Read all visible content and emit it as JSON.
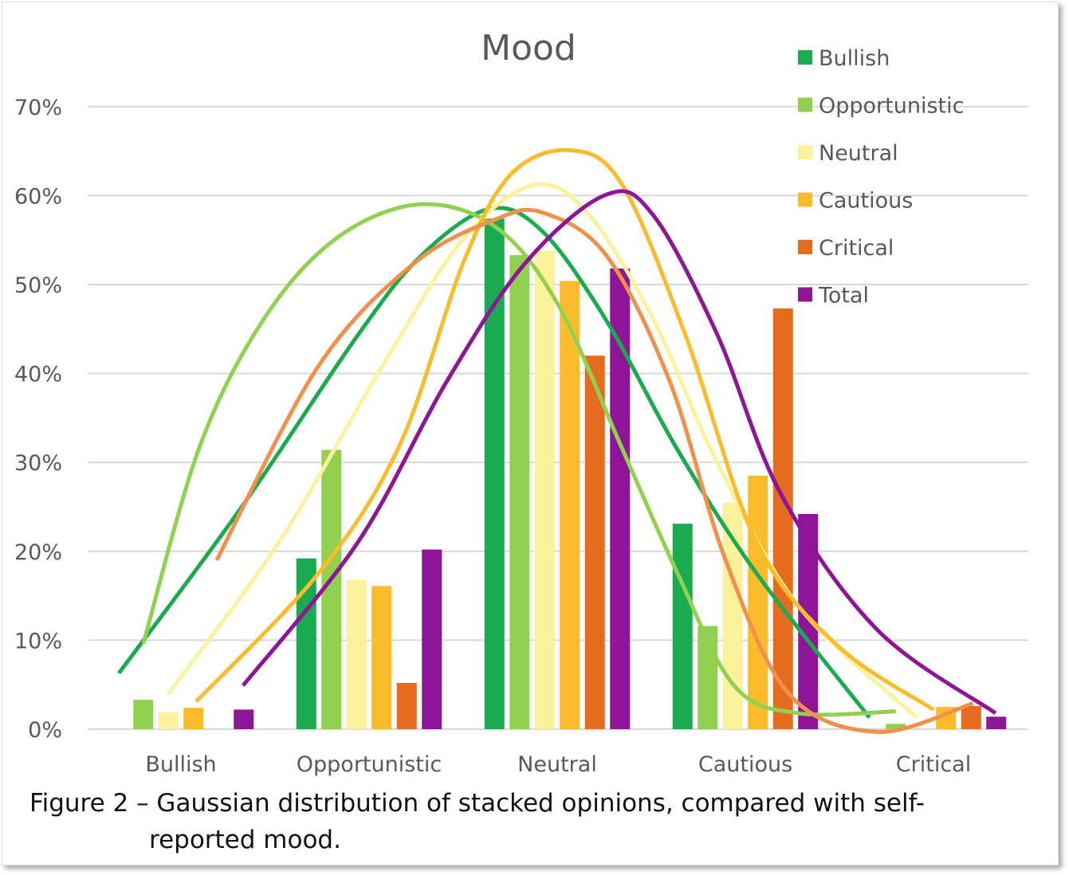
{
  "chart_data": {
    "type": "bar",
    "title": "Mood",
    "categories": [
      "Bullish",
      "Opportunistic",
      "Neutral",
      "Cautious",
      "Critical"
    ],
    "ylim": [
      0,
      70
    ],
    "yticks": [
      "0%",
      "10%",
      "20%",
      "30%",
      "40%",
      "50%",
      "60%",
      "70%"
    ],
    "grid": true,
    "legend_placement": "top-right",
    "series": [
      {
        "name": "Bullish",
        "color": "#1aab50",
        "values": [
          0,
          19.2,
          57.4,
          23.1,
          0
        ],
        "trend": [
          [
            -0.33,
            6.3
          ],
          [
            0.31,
            24.6
          ],
          [
            0.94,
            44.3
          ],
          [
            1.28,
            53.3
          ],
          [
            1.64,
            58.5
          ],
          [
            1.92,
            56
          ],
          [
            2.26,
            46
          ],
          [
            2.64,
            31.4
          ],
          [
            3.06,
            17.5
          ],
          [
            3.66,
            1.3
          ]
        ]
      },
      {
        "name": "Opportunistic",
        "color": "#92d050",
        "values": [
          3.3,
          31.4,
          53.3,
          11.6,
          0.6
        ],
        "trend": [
          [
            -0.2,
            9.6
          ],
          [
            0.1,
            31.8
          ],
          [
            0.44,
            46.1
          ],
          [
            0.82,
            55.1
          ],
          [
            1.26,
            59
          ],
          [
            1.67,
            56.5
          ],
          [
            2.0,
            47.9
          ],
          [
            2.34,
            31.8
          ],
          [
            2.64,
            17.5
          ],
          [
            2.94,
            4.9
          ],
          [
            3.28,
            1.8
          ],
          [
            3.8,
            2.0
          ]
        ]
      },
      {
        "name": "Neutral",
        "color": "#fdf29c",
        "values": [
          1.9,
          16.8,
          53.8,
          25.5,
          0
        ],
        "trend": [
          [
            -0.07,
            3.9
          ],
          [
            0.52,
            21
          ],
          [
            1.07,
            40.8
          ],
          [
            1.5,
            55.1
          ],
          [
            1.88,
            61.2
          ],
          [
            2.17,
            57.8
          ],
          [
            2.51,
            46.1
          ],
          [
            2.85,
            30
          ],
          [
            3.28,
            13.9
          ],
          [
            3.91,
            1.3
          ]
        ]
      },
      {
        "name": "Cautious",
        "color": "#fbbc2c",
        "values": [
          2.4,
          16.1,
          50.4,
          28.5,
          2.5
        ],
        "trend": [
          [
            0.08,
            3.1
          ],
          [
            0.73,
            17.5
          ],
          [
            1.16,
            31.8
          ],
          [
            1.5,
            52.4
          ],
          [
            1.75,
            62.3
          ],
          [
            2.06,
            65.1
          ],
          [
            2.34,
            61.4
          ],
          [
            2.68,
            44.4
          ],
          [
            3.06,
            21
          ],
          [
            3.49,
            9.4
          ],
          [
            4.0,
            2.2
          ]
        ]
      },
      {
        "name": "Critical",
        "color": "#e56b1f",
        "trend_color": "#f0904a",
        "values": [
          0,
          5.2,
          42,
          47.3,
          2.6
        ],
        "trend": [
          [
            0.19,
            19
          ],
          [
            0.73,
            40.8
          ],
          [
            1.24,
            52.4
          ],
          [
            1.67,
            57.3
          ],
          [
            1.92,
            58.1
          ],
          [
            2.26,
            53.3
          ],
          [
            2.6,
            39
          ],
          [
            2.89,
            19.3
          ],
          [
            3.23,
            4.0
          ],
          [
            3.7,
            -0.3
          ],
          [
            4.21,
            2.9
          ]
        ]
      },
      {
        "name": "Total",
        "color": "#8e1597",
        "values": [
          2.2,
          20.2,
          51.8,
          24.2,
          1.4
        ],
        "trend": [
          [
            0.33,
            4.9
          ],
          [
            0.94,
            21
          ],
          [
            1.41,
            39
          ],
          [
            1.83,
            52.4
          ],
          [
            2.26,
            60.1
          ],
          [
            2.51,
            57.8
          ],
          [
            2.85,
            44.4
          ],
          [
            3.19,
            26.4
          ],
          [
            3.7,
            11.2
          ],
          [
            4.33,
            1.8
          ]
        ]
      }
    ]
  },
  "caption": {
    "line1": "Figure 2 – Gaussian distribution of stacked opinions, compared with self-",
    "line2": "reported mood."
  }
}
